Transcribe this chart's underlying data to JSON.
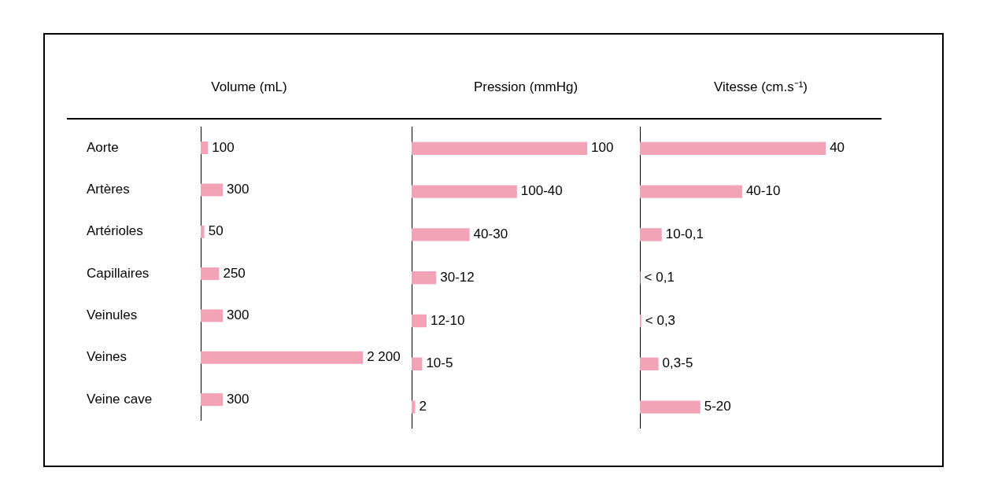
{
  "chart_data": [
    {
      "type": "bar",
      "orientation": "horizontal",
      "title": "Volume (mL)",
      "categories": [
        "Aorte",
        "Artères",
        "Artérioles",
        "Capillaires",
        "Veinules",
        "Veines",
        "Veine cave"
      ],
      "values": [
        100,
        300,
        50,
        250,
        300,
        2200,
        300
      ],
      "value_labels": [
        "100",
        "300",
        "50",
        "250",
        "300",
        "2 200",
        "300"
      ],
      "color": "#f2a3b5",
      "tick_labels": "y"
    },
    {
      "type": "bar",
      "orientation": "horizontal",
      "title": "Pression (mmHg)",
      "values": [
        100,
        60,
        33,
        14,
        8.5,
        6,
        2
      ],
      "value_labels": [
        "100",
        "100-40",
        "40-30",
        "30-12",
        "12-10",
        "10-5",
        "2"
      ],
      "color": "#f2a3b5",
      "tick_labels": false
    },
    {
      "type": "bar",
      "orientation": "horizontal",
      "title": "Vitesse (cm.s⁻¹)",
      "values": [
        40,
        22,
        4.7,
        0.1,
        0.3,
        4,
        13
      ],
      "value_labels": [
        "40",
        "40-10",
        "10-0,1",
        "< 0,1",
        "< 0,3",
        "0,3-5",
        "5-20"
      ],
      "color": "#f2a3b5",
      "tick_labels": false
    }
  ]
}
